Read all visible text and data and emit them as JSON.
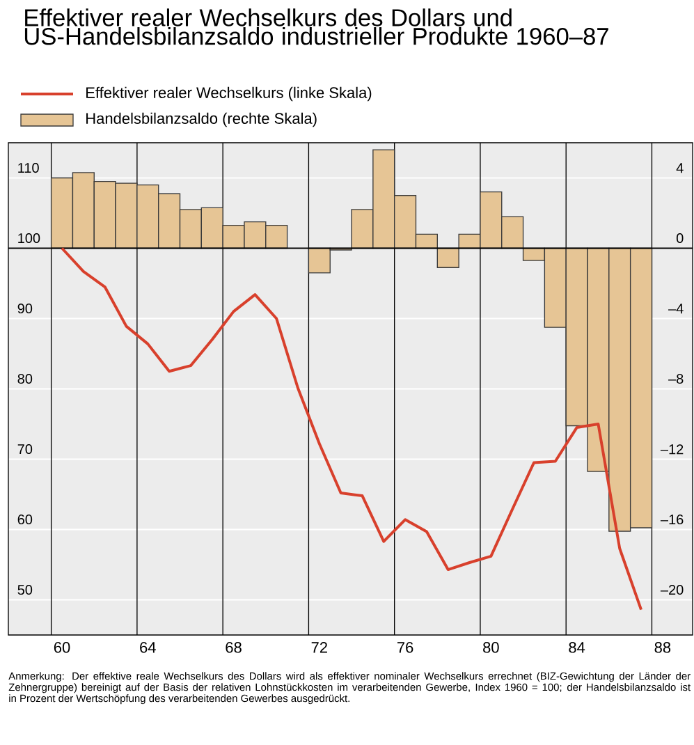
{
  "chart_data": {
    "type": "bar",
    "title": "Effektiver realer Wechselkurs des Dollars und US-Handelsbilanzsaldo industrieller Produkte 1960–87",
    "x": [
      1960,
      1961,
      1962,
      1963,
      1964,
      1965,
      1966,
      1967,
      1968,
      1969,
      1970,
      1971,
      1972,
      1973,
      1974,
      1975,
      1976,
      1977,
      1978,
      1979,
      1980,
      1981,
      1982,
      1983,
      1984,
      1985,
      1986,
      1987
    ],
    "series": [
      {
        "name": "Effektiver realer Wechselkurs (linke Skala)",
        "type": "line",
        "axis": "y",
        "color": "#d8402c",
        "values": [
          100,
          96.7,
          94.5,
          88.9,
          86.4,
          82.5,
          83.3,
          87.0,
          91.0,
          93.4,
          90.0,
          80.1,
          72.2,
          65.2,
          64.8,
          58.3,
          61.4,
          59.7,
          54.3,
          55.3,
          56.2,
          62.9,
          69.5,
          69.7,
          74.5,
          75.0,
          57.3,
          48.6
        ]
      },
      {
        "name": "Handelsbilanzsaldo (rechte Skala)",
        "type": "bar",
        "axis": "y2",
        "color": "#e6c595",
        "values": [
          4.0,
          4.3,
          3.8,
          3.7,
          3.6,
          3.1,
          2.2,
          2.3,
          1.3,
          1.5,
          1.3,
          null,
          -1.4,
          -0.1,
          2.2,
          5.6,
          3.0,
          0.8,
          -1.1,
          0.8,
          3.2,
          1.8,
          -0.7,
          -4.5,
          -10.1,
          -12.7,
          -16.1,
          -15.9
        ]
      }
    ],
    "xlim": [
      1957.5,
      1989.4
    ],
    "xticks": [
      {
        "value": 1960,
        "label": "60"
      },
      {
        "value": 1964,
        "label": "64"
      },
      {
        "value": 1968,
        "label": "68"
      },
      {
        "value": 1972,
        "label": "72"
      },
      {
        "value": 1976,
        "label": "76"
      },
      {
        "value": 1980,
        "label": "80"
      },
      {
        "value": 1984,
        "label": "84"
      },
      {
        "value": 1988,
        "label": "88"
      }
    ],
    "ylim": [
      45,
      115
    ],
    "yticks": [
      50,
      60,
      70,
      80,
      90,
      100,
      110
    ],
    "y2lim": [
      -22,
      6
    ],
    "y2ticks": [
      {
        "value": -20,
        "label": "–20"
      },
      {
        "value": -16,
        "label": "–16"
      },
      {
        "value": -12,
        "label": "–12"
      },
      {
        "value": -8,
        "label": "–8"
      },
      {
        "value": -4,
        "label": "–4"
      },
      {
        "value": 0,
        "label": "0"
      },
      {
        "value": 4,
        "label": "4"
      }
    ],
    "grid": "y",
    "legend": "top left",
    "ref_lines": [
      {
        "axis": "y",
        "value": 100,
        "color": "#000000"
      },
      {
        "axis": "x",
        "value": 1959.5,
        "color": "#000000"
      },
      {
        "axis": "x",
        "value": 1963.5,
        "color": "#000000"
      },
      {
        "axis": "x",
        "value": 1967.5,
        "color": "#000000"
      },
      {
        "axis": "x",
        "value": 1971.5,
        "color": "#000000"
      },
      {
        "axis": "x",
        "value": 1975.5,
        "color": "#000000"
      },
      {
        "axis": "x",
        "value": 1979.5,
        "color": "#000000"
      },
      {
        "axis": "x",
        "value": 1983.5,
        "color": "#000000"
      },
      {
        "axis": "x",
        "value": 1987.5,
        "color": "#000000"
      }
    ],
    "annotations": [
      "Anmerkung: Der effektive reale Wechselkurs des Dollars wird als effektiver nominaler Wechselkurs errechnet (BIZ-Gewichtung der Länder der Zehnergruppe) bereinigt auf der Basis der relativen Lohnstückkosten im verarbeitenden Gewerbe, Index 1960 = 100; der Handelsbilanzsaldo ist in Prozent der Wertschöpfung des verarbeitenden Gewerbes ausgedrückt."
    ]
  }
}
